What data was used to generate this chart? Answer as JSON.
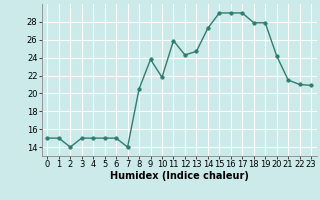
{
  "x": [
    0,
    1,
    2,
    3,
    4,
    5,
    6,
    7,
    8,
    9,
    10,
    11,
    12,
    13,
    14,
    15,
    16,
    17,
    18,
    19,
    20,
    21,
    22,
    23
  ],
  "y": [
    15,
    15,
    14,
    15,
    15,
    15,
    15,
    14,
    20.5,
    23.8,
    21.8,
    25.9,
    24.3,
    24.7,
    27.3,
    29.0,
    29.0,
    29.0,
    27.9,
    27.9,
    24.2,
    21.5,
    21.0,
    20.9
  ],
  "line_color": "#2e7d6e",
  "marker_color": "#2e7d6e",
  "bg_color": "#cceaea",
  "grid_color": "#ffffff",
  "xlabel": "Humidex (Indice chaleur)",
  "ylim": [
    13,
    30
  ],
  "yticks": [
    14,
    16,
    18,
    20,
    22,
    24,
    26,
    28
  ],
  "xlim": [
    -0.5,
    23.5
  ],
  "xticks": [
    0,
    1,
    2,
    3,
    4,
    5,
    6,
    7,
    8,
    9,
    10,
    11,
    12,
    13,
    14,
    15,
    16,
    17,
    18,
    19,
    20,
    21,
    22,
    23
  ],
  "xtick_labels": [
    "0",
    "1",
    "2",
    "3",
    "4",
    "5",
    "6",
    "7",
    "8",
    "9",
    "10",
    "11",
    "12",
    "13",
    "14",
    "15",
    "16",
    "17",
    "18",
    "19",
    "20",
    "21",
    "22",
    "23"
  ],
  "linewidth": 1.0,
  "markersize": 2.5,
  "tick_fontsize": 6.0,
  "xlabel_fontsize": 7.0
}
